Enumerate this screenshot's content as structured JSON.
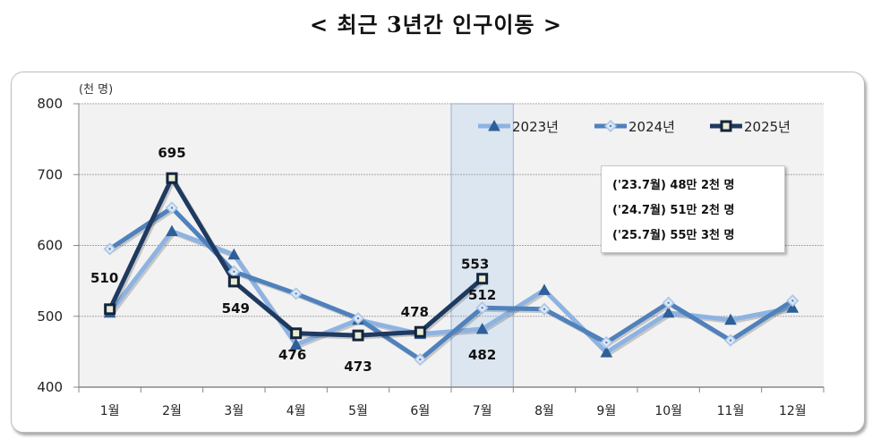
{
  "title": "< 최근 3년간 인구이동 >",
  "chart_data": {
    "type": "line",
    "title": "< 최근 3년간 인구이동 >",
    "ylabel": "(천 명)",
    "xlabel": "",
    "ylim": [
      400,
      800
    ],
    "yticks": [
      400,
      500,
      600,
      700,
      800
    ],
    "categories": [
      "1월",
      "2월",
      "3월",
      "4월",
      "5월",
      "6월",
      "7월",
      "8월",
      "9월",
      "10월",
      "11월",
      "12월"
    ],
    "grid": true,
    "legend_position": "top-right",
    "highlight_category": "7월",
    "series": [
      {
        "name": "2023년",
        "color": "#8db3e2",
        "marker": "triangle",
        "values": [
          505,
          620,
          587,
          460,
          495,
          475,
          482,
          537,
          449,
          505,
          495,
          512
        ]
      },
      {
        "name": "2024년",
        "color": "#4f81bd",
        "marker": "diamond",
        "values": [
          595,
          653,
          563,
          532,
          497,
          439,
          512,
          510,
          463,
          519,
          466,
          522
        ]
      },
      {
        "name": "2025년",
        "color": "#1f3a60",
        "marker": "square",
        "values": [
          510,
          695,
          549,
          476,
          473,
          478,
          553,
          null,
          null,
          null,
          null,
          null
        ]
      }
    ],
    "data_labels": [
      {
        "series": "2025년",
        "category": "1월",
        "text": "510"
      },
      {
        "series": "2025년",
        "category": "2월",
        "text": "695"
      },
      {
        "series": "2025년",
        "category": "3월",
        "text": "549"
      },
      {
        "series": "2025년",
        "category": "4월",
        "text": "476"
      },
      {
        "series": "2025년",
        "category": "5월",
        "text": "473"
      },
      {
        "series": "2025년",
        "category": "6월",
        "text": "478"
      },
      {
        "series": "2025년",
        "category": "7월",
        "text": "553"
      },
      {
        "series": "2024년",
        "category": "7월",
        "text": "512"
      },
      {
        "series": "2023년",
        "category": "7월",
        "text": "482"
      }
    ],
    "annotation": [
      "('23.7월) 48만 2천 명",
      "('24.7월) 51만 2천 명",
      "('25.7월) 55만 3천 명"
    ]
  },
  "colors": {
    "plot_bg": "#f2f2f2",
    "highlight_fill": "#dce6f1",
    "highlight_border": "#95b3d7",
    "grid": "#a6a6a6"
  }
}
